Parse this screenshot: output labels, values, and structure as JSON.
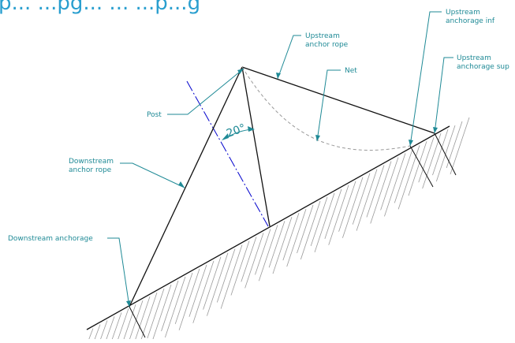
{
  "header": {
    "text": "p... ...pg... ... ...p...g"
  },
  "labels": {
    "upstream_anchor_rope": [
      "Upstream",
      "anchor rope"
    ],
    "net": "Net",
    "upstream_anchorage_inf": [
      "Upstream",
      "anchorage inf"
    ],
    "upstream_anchorage_sup": [
      "Upstream",
      "anchorage sup"
    ],
    "post": "Post",
    "angle": "20°",
    "downstream_anchor_rope": [
      "Downstream",
      "anchor rope"
    ],
    "downstream_anchorage": "Downstream anchorage"
  },
  "colors": {
    "accent": "#1f8a96",
    "axis": "#0000cc",
    "net": "#9a9a9a",
    "line": "#111111",
    "header": "#2a9fcf"
  }
}
